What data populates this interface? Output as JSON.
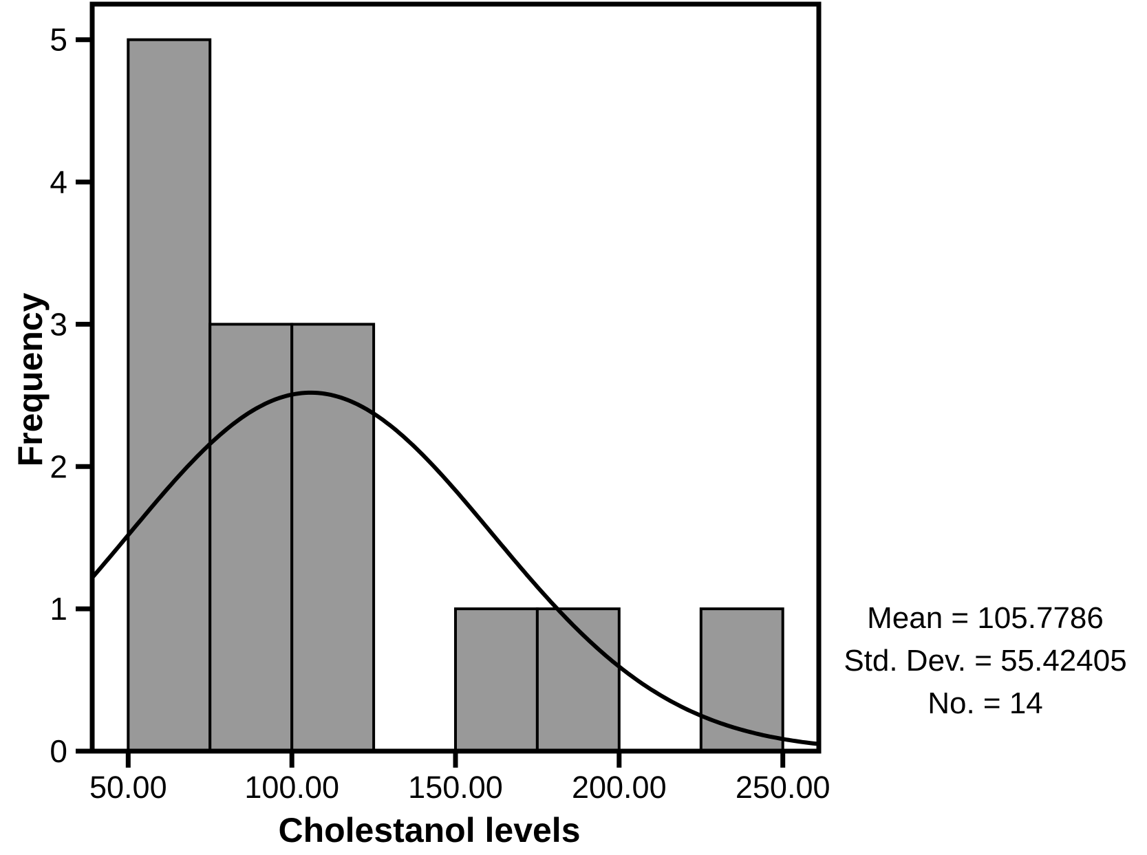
{
  "chart_data": {
    "type": "bar",
    "subtype": "histogram-with-normal-curve",
    "title": "",
    "xlabel": "Cholestanol levels",
    "ylabel": "Frequency",
    "bin_width": 25,
    "bins": [
      {
        "start": 50,
        "end": 75,
        "count": 5
      },
      {
        "start": 75,
        "end": 100,
        "count": 3
      },
      {
        "start": 100,
        "end": 125,
        "count": 3
      },
      {
        "start": 125,
        "end": 150,
        "count": 0
      },
      {
        "start": 150,
        "end": 175,
        "count": 1
      },
      {
        "start": 175,
        "end": 200,
        "count": 1
      },
      {
        "start": 200,
        "end": 225,
        "count": 0
      },
      {
        "start": 225,
        "end": 250,
        "count": 1
      }
    ],
    "categories": [
      "50-75",
      "75-100",
      "100-125",
      "125-150",
      "150-175",
      "175-200",
      "200-225",
      "225-250"
    ],
    "values": [
      5,
      3,
      3,
      0,
      1,
      1,
      0,
      1
    ],
    "xticks": [
      "50.00",
      "100.00",
      "150.00",
      "200.00",
      "250.00"
    ],
    "xtick_values": [
      50,
      100,
      150,
      200,
      250
    ],
    "yticks": [
      0,
      1,
      2,
      3,
      4,
      5
    ],
    "xlim": [
      39,
      261
    ],
    "ylim": [
      0,
      5.25
    ],
    "grid": "off",
    "legend": "none",
    "curve": {
      "type": "normal",
      "mean": 105.7786,
      "sd": 55.42405,
      "n": 14,
      "note": "curve height = n * bin_width * normal_pdf(x; mean, sd)"
    },
    "bar_fill": "#999999",
    "line_color": "#000000",
    "annotation": {
      "lines": [
        "Mean = 105.7786",
        "Std. Dev. = 55.42405",
        "No. = 14"
      ]
    }
  }
}
